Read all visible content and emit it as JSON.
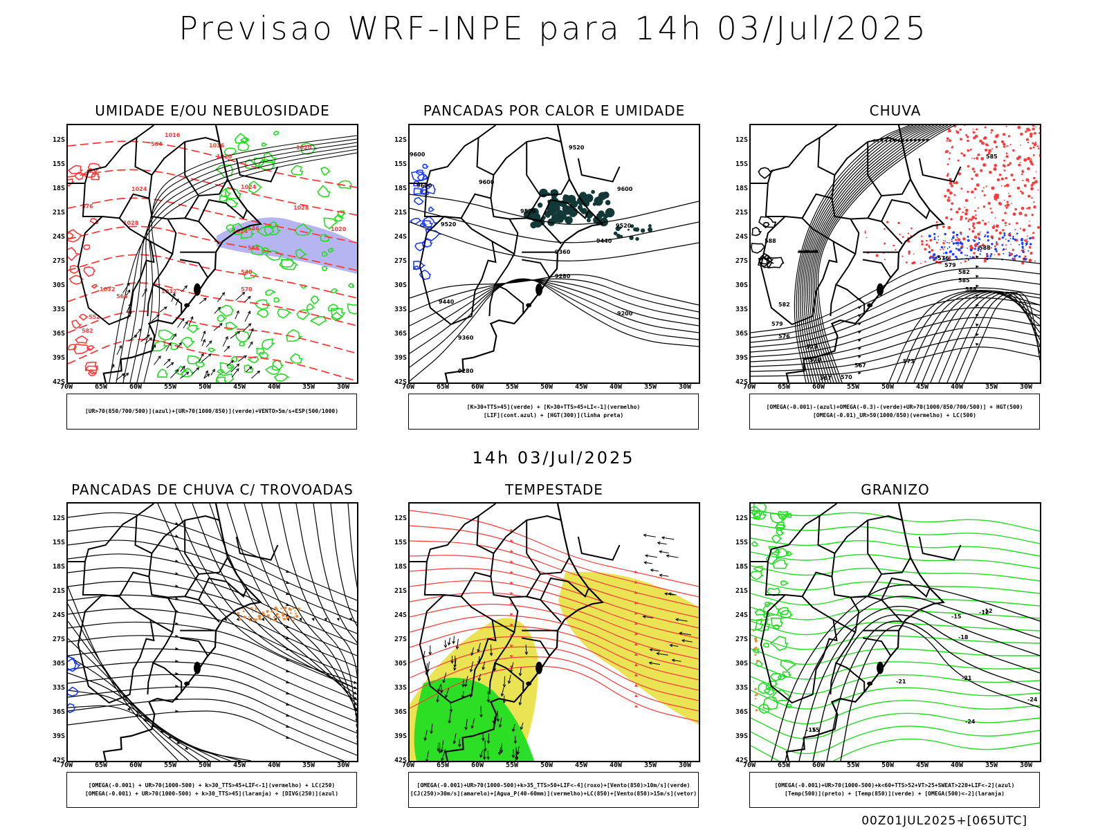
{
  "header": {
    "title": "Previsao WRF-INPE  para 14h 03/Jul/2025",
    "mid_title": "14h 03/Jul/2025",
    "footer": "00Z01JUL2025+[065UTC]"
  },
  "axes": {
    "lat_labels": [
      "12S",
      "15S",
      "18S",
      "21S",
      "24S",
      "27S",
      "30S",
      "33S",
      "36S",
      "39S",
      "42S"
    ],
    "lon_labels": [
      "70W",
      "65W",
      "60W",
      "55W",
      "50W",
      "45W",
      "40W",
      "35W",
      "30W"
    ]
  },
  "colors": {
    "red": "#ff3a3a",
    "green": "#22dd22",
    "blue": "#1c3cff",
    "lavender": "#a8a8ee",
    "dark_teal": "#123838",
    "yellow": "#e8e040",
    "orange": "#ee8833"
  },
  "panels": [
    {
      "title": "UMIDADE E/OU NEBULOSIDADE",
      "legend": [
        "[UR>70(850/700/500)](azul)+[UR>70(1000/850)](verde)+VENTO>5m/s+ESP(500/1000)"
      ],
      "contour_labels": [
        "1016",
        "1016",
        "1020",
        "1020",
        "1024",
        "1024",
        "1028",
        "1028",
        "1032",
        "1032",
        "1024",
        "1020",
        "1024",
        "570",
        "564",
        "552",
        "546",
        "540",
        "570",
        "564",
        "582",
        "576",
        "558"
      ]
    },
    {
      "title": "PANCADAS POR CALOR E UMIDADE",
      "legend": [
        "[K>30+TTS>45](verde) + [K>30+TTS>45+LI<-1](vermelho)",
        "[LIF](cont.azul) + [HGT(300)](linha preta)"
      ],
      "contour_labels": [
        "9600",
        "9600",
        "9520",
        "9600",
        "9520",
        "9440",
        "9360",
        "9280",
        "9200",
        "9520",
        "9440",
        "9360",
        "9280",
        "9520",
        "9600"
      ]
    },
    {
      "title": "CHUVA",
      "legend": [
        "[OMEGA(-0.001)-(azul)+OMEGA(-0.3)-(verde)+UR>70(1000/850/700/500)] + HGT(500)",
        "[OMEGA(-0.01)_UR>50(1000/850)(vermelho) + LC(500)"
      ],
      "contour_labels": [
        "585",
        "588",
        "582",
        "579",
        "576",
        "573",
        "570",
        "567",
        "570",
        "573",
        "576",
        "579",
        "582",
        "585",
        "588",
        "588",
        "567"
      ]
    },
    {
      "title": "PANCADAS DE CHUVA C/ TROVOADAS",
      "legend": [
        "[OMEGA(-0.001) + UR>70(1000-500) + k>30_TTS>45+LIF<-1](vermelho) + LC(250)",
        "[OMEGA(-0.001) + UR>70(1000-500) + k>30_TTS>45](laranja) + [DIVG(250)](azul)"
      ],
      "contour_labels": []
    },
    {
      "title": "TEMPESTADE",
      "legend": [
        "[OMEGA(-0.001)+UR>70(1000-500)+k>35_TTS>50+LIF<-4](roxo)+[Vento(850)>10m/s](verde)",
        "[CJ(250)>30m/s](amarelo)+[Agua_P(40-60mm)](vermelho)+LC(850)+[Vento(850)>15m/s](vetor)"
      ],
      "contour_labels": []
    },
    {
      "title": "GRANIZO",
      "legend": [
        "[OMEGA(-0.001)+UR>70(1000-500)+k<60+TTS>52+VT>25+SWEAT>220+LIF<-2](azul)",
        "[Temp(500)](preto) + [Temp(850)](verde) + [OMEGA(500)<-2](laranja)"
      ],
      "contour_labels": [
        "-12",
        "-15",
        "-18",
        "-21",
        "-21",
        "-24",
        "-24",
        "-15",
        "-15",
        "-12"
      ]
    }
  ]
}
